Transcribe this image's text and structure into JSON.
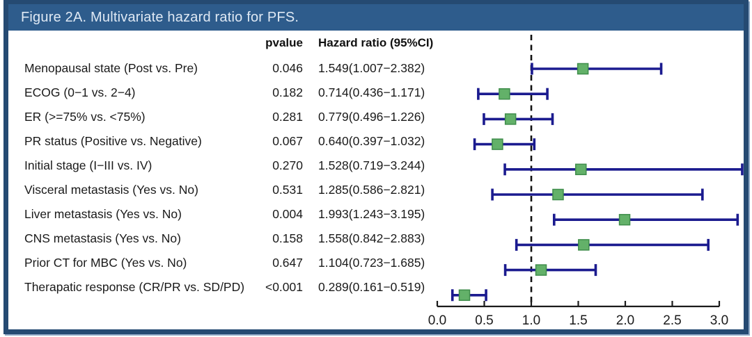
{
  "title_bar": {
    "text": "Figure 2A. Multivariate hazard ratio for PFS."
  },
  "table_headers": {
    "pvalue": "pvalue",
    "hazard_ratio": "Hazard ratio (95%CI)"
  },
  "chart_data": {
    "type": "forest",
    "title": "Figure 2A. Multivariate hazard ratio for PFS.",
    "columns": [
      "variable",
      "pvalue",
      "hazard_ratio_95ci"
    ],
    "rows": [
      {
        "label": "Menopausal state (Post vs. Pre)",
        "pvalue": "0.046",
        "hr_text": "1.549(1.007−2.382)",
        "hr": 1.549,
        "lo": 1.007,
        "hi": 2.382
      },
      {
        "label": "ECOG (0−1 vs. 2−4)",
        "pvalue": "0.182",
        "hr_text": "0.714(0.436−1.171)",
        "hr": 0.714,
        "lo": 0.436,
        "hi": 1.171
      },
      {
        "label": "ER (>=75% vs. <75%)",
        "pvalue": "0.281",
        "hr_text": "0.779(0.496−1.226)",
        "hr": 0.779,
        "lo": 0.496,
        "hi": 1.226
      },
      {
        "label": "PR status (Positive vs. Negative)",
        "pvalue": "0.067",
        "hr_text": "0.640(0.397−1.032)",
        "hr": 0.64,
        "lo": 0.397,
        "hi": 1.032
      },
      {
        "label": "Initial stage (I−III vs. IV)",
        "pvalue": "0.270",
        "hr_text": "1.528(0.719−3.244)",
        "hr": 1.528,
        "lo": 0.719,
        "hi": 3.244
      },
      {
        "label": "Visceral metastasis (Yes vs. No)",
        "pvalue": "0.531",
        "hr_text": "1.285(0.586−2.821)",
        "hr": 1.285,
        "lo": 0.586,
        "hi": 2.821
      },
      {
        "label": "Liver metastasis (Yes vs. No)",
        "pvalue": "0.004",
        "hr_text": "1.993(1.243−3.195)",
        "hr": 1.993,
        "lo": 1.243,
        "hi": 3.195
      },
      {
        "label": "CNS metastasis (Yes vs. No)",
        "pvalue": "0.158",
        "hr_text": "1.558(0.842−2.883)",
        "hr": 1.558,
        "lo": 0.842,
        "hi": 2.883
      },
      {
        "label": "Prior CT for MBC (Yes vs. No)",
        "pvalue": "0.647",
        "hr_text": "1.104(0.723−1.685)",
        "hr": 1.104,
        "lo": 0.723,
        "hi": 1.685
      },
      {
        "label": "Therapatic response (CR/PR vs. SD/PD)",
        "pvalue": "<0.001",
        "hr_text": "0.289(0.161−0.519)",
        "hr": 0.289,
        "lo": 0.161,
        "hi": 0.519
      }
    ],
    "x_axis": {
      "min": 0.0,
      "max": 3.0,
      "tick_values": [
        0.0,
        0.5,
        1.0,
        1.5,
        2.0,
        2.5,
        3.0
      ],
      "tick_labels": [
        "0.0",
        "0.5",
        "1.0",
        "1.5",
        "2.0",
        "2.5",
        "3.0"
      ],
      "reference_line": 1.0
    },
    "legend": null,
    "colors": {
      "ci_line": "#1b1b8f",
      "marker_fill": "#63b169",
      "marker_border": "#3f8d4b",
      "axis": "#1a1a1a",
      "reference_line": "#111111"
    }
  },
  "frame_colors": {
    "border": "#254a72",
    "title_bg": "#2e5c8c",
    "title_text": "#dfe9f4"
  }
}
